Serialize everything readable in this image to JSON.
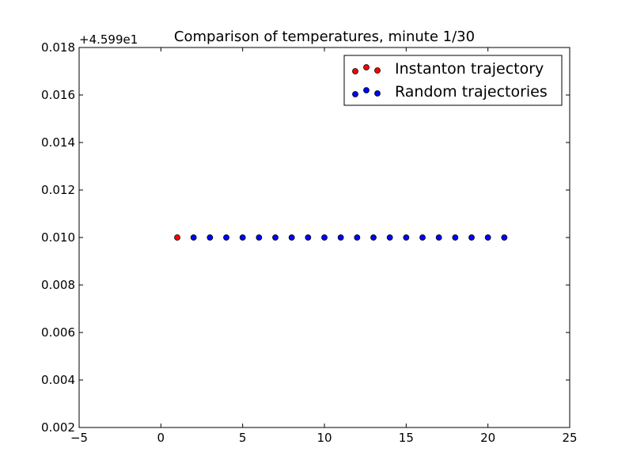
{
  "chart_data": {
    "type": "scatter",
    "title": "Comparison of temperatures, minute 1/30",
    "xlabel": "",
    "ylabel": "",
    "offset_label": "+4.599e1",
    "xlim": [
      -5,
      25
    ],
    "ylim": [
      0.002,
      0.018
    ],
    "x_ticks": [
      -5,
      0,
      5,
      10,
      15,
      20,
      25
    ],
    "x_tick_labels": [
      "−5",
      "0",
      "5",
      "10",
      "15",
      "20",
      "25"
    ],
    "y_ticks": [
      0.002,
      0.004,
      0.006,
      0.008,
      0.01,
      0.012,
      0.014,
      0.016,
      0.018
    ],
    "y_tick_labels": [
      "0.002",
      "0.004",
      "0.006",
      "0.008",
      "0.010",
      "0.012",
      "0.014",
      "0.016",
      "0.018"
    ],
    "grid": false,
    "legend_position": "top-right",
    "series": [
      {
        "name": "Instanton trajectory",
        "color": "#ff0000",
        "x": [
          1
        ],
        "y": [
          0.01
        ]
      },
      {
        "name": "Random trajectories",
        "color": "#0000ff",
        "x": [
          2,
          3,
          4,
          5,
          6,
          7,
          8,
          9,
          10,
          11,
          12,
          13,
          14,
          15,
          16,
          17,
          18,
          19,
          20,
          21
        ],
        "y": [
          0.01,
          0.01,
          0.01,
          0.01,
          0.01,
          0.01,
          0.01,
          0.01,
          0.01,
          0.01,
          0.01,
          0.01,
          0.01,
          0.01,
          0.01,
          0.01,
          0.01,
          0.01,
          0.01,
          0.01
        ]
      }
    ]
  }
}
